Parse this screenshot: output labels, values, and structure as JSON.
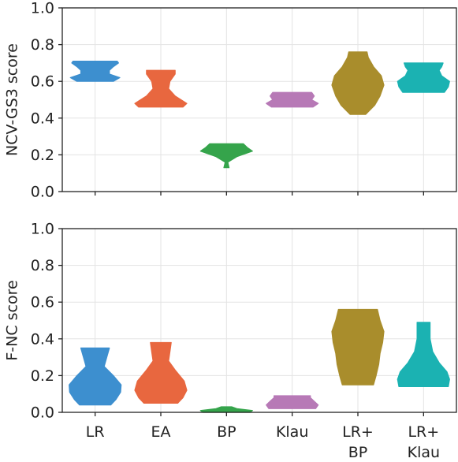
{
  "chart_data": [
    {
      "type": "violin",
      "ylabel": "NCV-GS3 score",
      "xlabel": "",
      "ylim": [
        0,
        1.0
      ],
      "yticks": [
        "0.0",
        "0.2",
        "0.4",
        "0.6",
        "0.8",
        "1.0"
      ],
      "grid": true,
      "categories": [
        "LR",
        "EA",
        "BP",
        "Klau",
        "LR+|BP",
        "LR+|Klau"
      ],
      "colors": [
        "#3d8fcf",
        "#e8673f",
        "#35a44b",
        "#b779b6",
        "#a98d2c",
        "#1bb2b2"
      ],
      "series": [
        {
          "min": 0.6,
          "max": 0.71,
          "profile": [
            [
              0.6,
              0.7
            ],
            [
              0.62,
              0.95
            ],
            [
              0.64,
              0.55
            ],
            [
              0.66,
              0.55
            ],
            [
              0.68,
              0.7
            ],
            [
              0.7,
              0.9
            ],
            [
              0.71,
              0.85
            ]
          ]
        },
        {
          "min": 0.46,
          "max": 0.66,
          "profile": [
            [
              0.46,
              0.85
            ],
            [
              0.48,
              1.0
            ],
            [
              0.52,
              0.55
            ],
            [
              0.56,
              0.3
            ],
            [
              0.6,
              0.35
            ],
            [
              0.64,
              0.55
            ],
            [
              0.66,
              0.55
            ]
          ]
        },
        {
          "min": 0.13,
          "max": 0.26,
          "profile": [
            [
              0.13,
              0.1
            ],
            [
              0.16,
              0.05
            ],
            [
              0.19,
              0.4
            ],
            [
              0.22,
              1.0
            ],
            [
              0.24,
              0.8
            ],
            [
              0.26,
              0.65
            ]
          ]
        },
        {
          "min": 0.46,
          "max": 0.54,
          "profile": [
            [
              0.46,
              0.8
            ],
            [
              0.48,
              1.0
            ],
            [
              0.5,
              0.75
            ],
            [
              0.52,
              0.85
            ],
            [
              0.54,
              0.75
            ]
          ]
        },
        {
          "min": 0.42,
          "max": 0.76,
          "profile": [
            [
              0.42,
              0.3
            ],
            [
              0.47,
              0.65
            ],
            [
              0.52,
              0.85
            ],
            [
              0.58,
              1.0
            ],
            [
              0.63,
              0.9
            ],
            [
              0.68,
              0.6
            ],
            [
              0.73,
              0.4
            ],
            [
              0.76,
              0.35
            ]
          ]
        },
        {
          "min": 0.54,
          "max": 0.7,
          "profile": [
            [
              0.54,
              0.8
            ],
            [
              0.57,
              0.95
            ],
            [
              0.6,
              1.0
            ],
            [
              0.63,
              0.7
            ],
            [
              0.66,
              0.6
            ],
            [
              0.68,
              0.7
            ],
            [
              0.7,
              0.75
            ]
          ]
        }
      ]
    },
    {
      "type": "violin",
      "ylabel": "F-NC score",
      "xlabel": "",
      "ylim": [
        0,
        1.0
      ],
      "yticks": [
        "0.0",
        "0.2",
        "0.4",
        "0.6",
        "0.8",
        "1.0"
      ],
      "grid": true,
      "categories": [
        "LR",
        "EA",
        "BP",
        "Klau",
        "LR+|BP",
        "LR+|Klau"
      ],
      "colors": [
        "#3d8fcf",
        "#e8673f",
        "#35a44b",
        "#b779b6",
        "#a98d2c",
        "#1bb2b2"
      ],
      "series": [
        {
          "min": 0.04,
          "max": 0.35,
          "profile": [
            [
              0.04,
              0.6
            ],
            [
              0.07,
              0.8
            ],
            [
              0.11,
              0.98
            ],
            [
              0.15,
              1.0
            ],
            [
              0.2,
              0.7
            ],
            [
              0.25,
              0.35
            ],
            [
              0.3,
              0.45
            ],
            [
              0.35,
              0.55
            ]
          ]
        },
        {
          "min": 0.05,
          "max": 0.38,
          "profile": [
            [
              0.05,
              0.65
            ],
            [
              0.08,
              0.85
            ],
            [
              0.12,
              1.0
            ],
            [
              0.17,
              0.9
            ],
            [
              0.23,
              0.55
            ],
            [
              0.28,
              0.3
            ],
            [
              0.33,
              0.35
            ],
            [
              0.38,
              0.4
            ]
          ]
        },
        {
          "min": 0.0,
          "max": 0.03,
          "profile": [
            [
              0.0,
              0.9
            ],
            [
              0.01,
              1.0
            ],
            [
              0.02,
              0.4
            ],
            [
              0.03,
              0.2
            ]
          ]
        },
        {
          "min": 0.02,
          "max": 0.09,
          "profile": [
            [
              0.02,
              0.9
            ],
            [
              0.04,
              1.0
            ],
            [
              0.06,
              0.85
            ],
            [
              0.08,
              0.7
            ],
            [
              0.09,
              0.7
            ]
          ]
        },
        {
          "min": 0.15,
          "max": 0.56,
          "profile": [
            [
              0.15,
              0.6
            ],
            [
              0.2,
              0.7
            ],
            [
              0.26,
              0.8
            ],
            [
              0.32,
              0.85
            ],
            [
              0.38,
              0.95
            ],
            [
              0.44,
              1.0
            ],
            [
              0.5,
              0.85
            ],
            [
              0.56,
              0.75
            ]
          ]
        },
        {
          "min": 0.14,
          "max": 0.49,
          "profile": [
            [
              0.14,
              0.95
            ],
            [
              0.18,
              1.0
            ],
            [
              0.22,
              0.9
            ],
            [
              0.27,
              0.6
            ],
            [
              0.33,
              0.35
            ],
            [
              0.4,
              0.25
            ],
            [
              0.45,
              0.25
            ],
            [
              0.49,
              0.25
            ]
          ]
        }
      ]
    }
  ]
}
